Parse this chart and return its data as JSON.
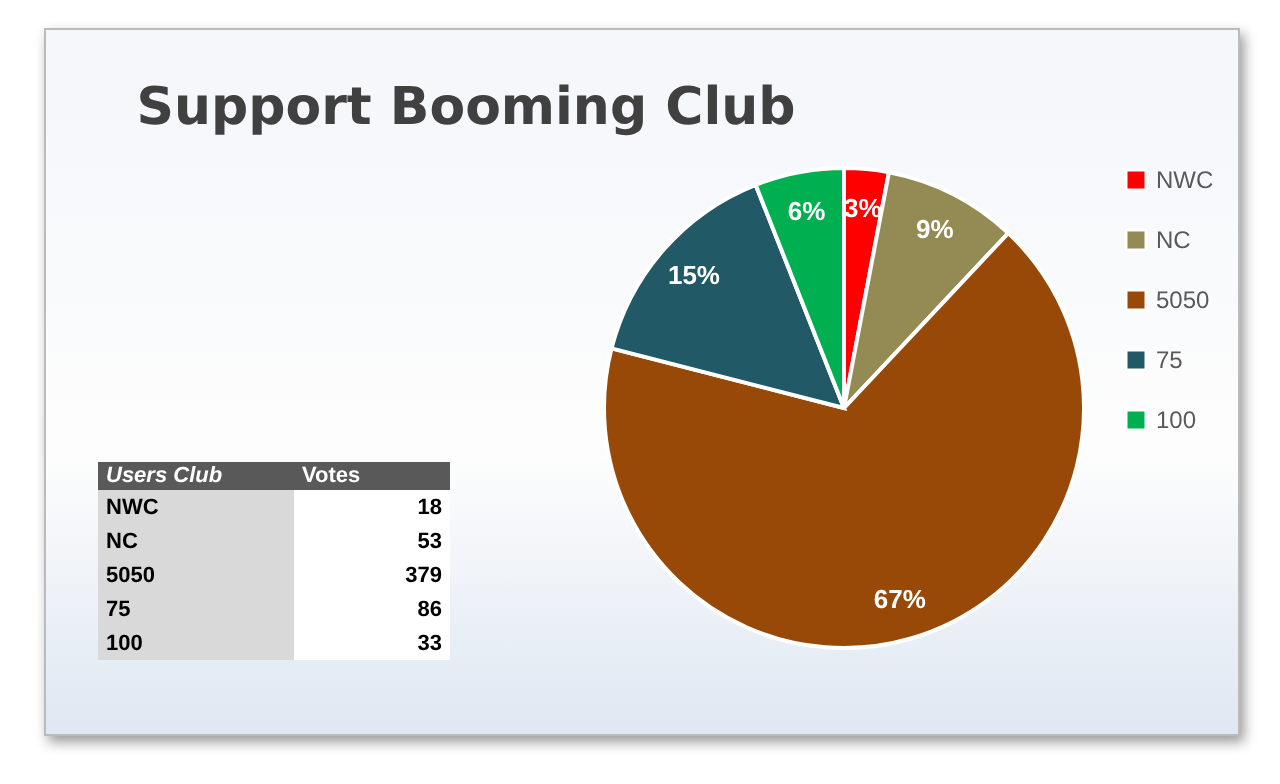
{
  "chart_data": {
    "type": "pie",
    "title": "Support Booming Club",
    "categories": [
      "NWC",
      "NC",
      "5050",
      "75",
      "100"
    ],
    "values": [
      3,
      9,
      67,
      15,
      6
    ],
    "colors": [
      "#ff0000",
      "#948a54",
      "#984807",
      "#215967",
      "#00b050"
    ],
    "value_labels": [
      "3%",
      "9%",
      "67%",
      "15%",
      "6%"
    ],
    "annotations": [
      "Users Club",
      "Votes",
      "18",
      "53",
      "379",
      "86",
      "33"
    ],
    "legend": "right"
  }
}
